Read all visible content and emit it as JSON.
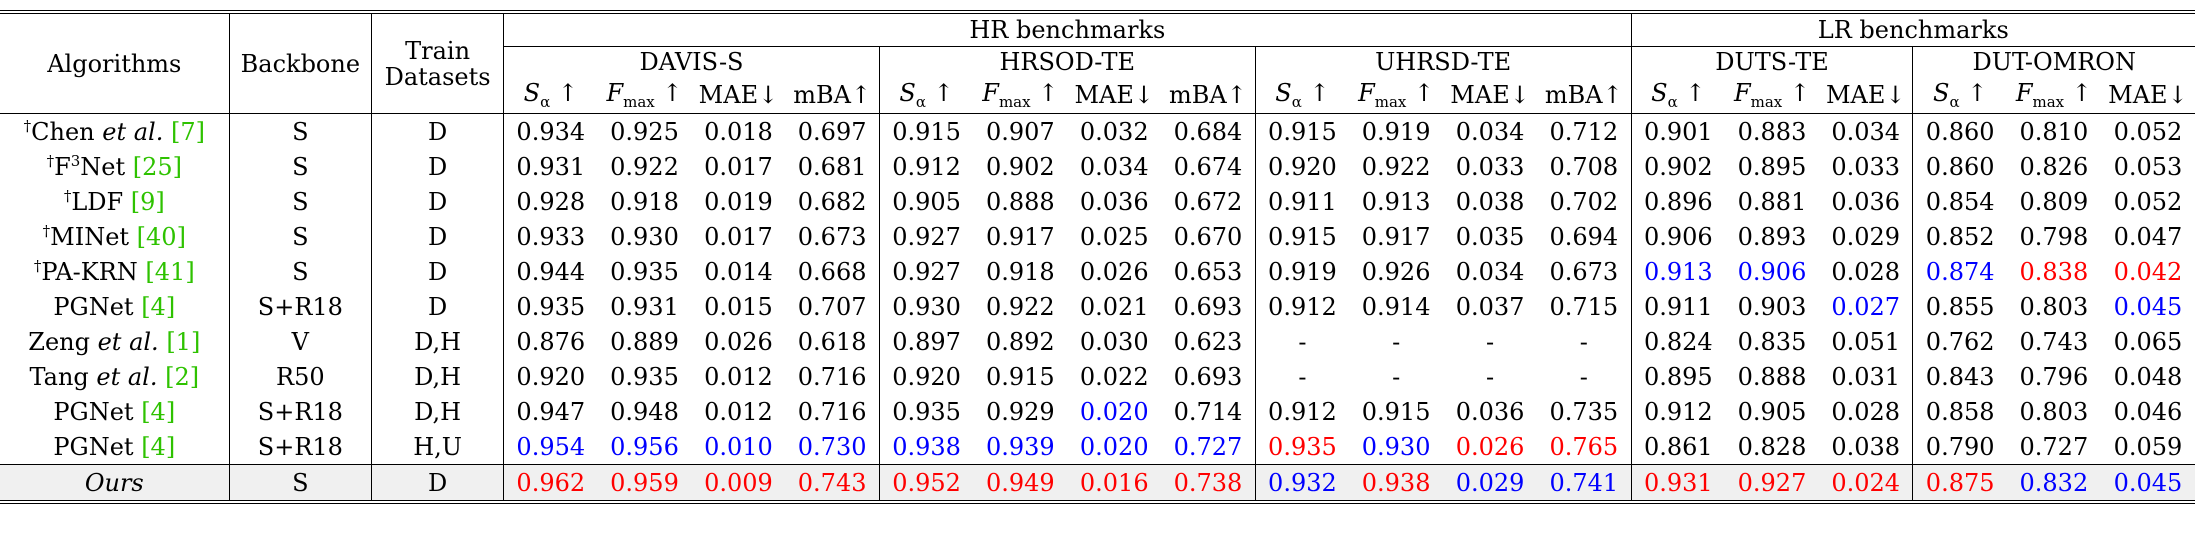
{
  "header": {
    "algorithms": "Algorithms",
    "backbone": "Backbone",
    "train_datasets": "Train Datasets",
    "hr_group": "HR benchmarks",
    "lr_group": "LR benchmarks",
    "datasets": [
      "DAVIS-S",
      "HRSOD-TE",
      "UHRSD-TE",
      "DUTS-TE",
      "DUT-OMRON"
    ],
    "metric_symbols": {
      "s_alpha": "S",
      "s_alpha_sub": "α",
      "f_max": "F",
      "f_max_sub": "max",
      "up_arrow": "↑",
      "mae": "MAE↓",
      "mba": "mBA↑"
    }
  },
  "rows": [
    {
      "dagger": "†",
      "name": "Chen ",
      "name_italic": "et al.",
      "ref": "[7]",
      "backbone": "S",
      "train": "D",
      "davis": [
        "0.934",
        "0.925",
        "0.018",
        "0.697"
      ],
      "hrsod": [
        "0.915",
        "0.907",
        "0.032",
        "0.684"
      ],
      "uhrsd": [
        "0.915",
        "0.919",
        "0.034",
        "0.712"
      ],
      "duts": [
        "0.901",
        "0.883",
        "0.034"
      ],
      "dutomron": [
        "0.860",
        "0.810",
        "0.052"
      ]
    },
    {
      "dagger": "†",
      "name": "F",
      "name_sup": "3",
      "name_rest": "Net ",
      "ref": "[25]",
      "backbone": "S",
      "train": "D",
      "davis": [
        "0.931",
        "0.922",
        "0.017",
        "0.681"
      ],
      "hrsod": [
        "0.912",
        "0.902",
        "0.034",
        "0.674"
      ],
      "uhrsd": [
        "0.920",
        "0.922",
        "0.033",
        "0.708"
      ],
      "duts": [
        "0.902",
        "0.895",
        "0.033"
      ],
      "dutomron": [
        "0.860",
        "0.826",
        "0.053"
      ]
    },
    {
      "dagger": "†",
      "name": "LDF ",
      "ref": "[9]",
      "backbone": "S",
      "train": "D",
      "davis": [
        "0.928",
        "0.918",
        "0.019",
        "0.682"
      ],
      "hrsod": [
        "0.905",
        "0.888",
        "0.036",
        "0.672"
      ],
      "uhrsd": [
        "0.911",
        "0.913",
        "0.038",
        "0.702"
      ],
      "duts": [
        "0.896",
        "0.881",
        "0.036"
      ],
      "dutomron": [
        "0.854",
        "0.809",
        "0.052"
      ]
    },
    {
      "dagger": "†",
      "name": "MINet ",
      "ref": "[40]",
      "backbone": "S",
      "train": "D",
      "davis": [
        "0.933",
        "0.930",
        "0.017",
        "0.673"
      ],
      "hrsod": [
        "0.927",
        "0.917",
        "0.025",
        "0.670"
      ],
      "uhrsd": [
        "0.915",
        "0.917",
        "0.035",
        "0.694"
      ],
      "duts": [
        "0.906",
        "0.893",
        "0.029"
      ],
      "dutomron": [
        "0.852",
        "0.798",
        "0.047"
      ]
    },
    {
      "dagger": "†",
      "name": "PA-KRN ",
      "ref": "[41]",
      "backbone": "S",
      "train": "D",
      "davis": [
        "0.944",
        "0.935",
        "0.014",
        "0.668"
      ],
      "hrsod": [
        "0.927",
        "0.918",
        "0.026",
        "0.653"
      ],
      "uhrsd": [
        "0.919",
        "0.926",
        "0.034",
        "0.673"
      ],
      "duts": [
        "0.913",
        "0.906",
        "0.028"
      ],
      "dutomron": [
        "0.874",
        "0.838",
        "0.042"
      ]
    },
    {
      "dagger": "",
      "name": "PGNet ",
      "ref": "[4]",
      "backbone": "S+R18",
      "train": "D",
      "davis": [
        "0.935",
        "0.931",
        "0.015",
        "0.707"
      ],
      "hrsod": [
        "0.930",
        "0.922",
        "0.021",
        "0.693"
      ],
      "uhrsd": [
        "0.912",
        "0.914",
        "0.037",
        "0.715"
      ],
      "duts": [
        "0.911",
        "0.903",
        "0.027"
      ],
      "dutomron": [
        "0.855",
        "0.803",
        "0.045"
      ]
    },
    {
      "dagger": "",
      "name": "Zeng ",
      "name_italic": "et al.",
      "ref": "[1]",
      "backbone": "V",
      "train": "D,H",
      "davis": [
        "0.876",
        "0.889",
        "0.026",
        "0.618"
      ],
      "hrsod": [
        "0.897",
        "0.892",
        "0.030",
        "0.623"
      ],
      "uhrsd": [
        "-",
        "-",
        "-",
        "-"
      ],
      "duts": [
        "0.824",
        "0.835",
        "0.051"
      ],
      "dutomron": [
        "0.762",
        "0.743",
        "0.065"
      ]
    },
    {
      "dagger": "",
      "name": "Tang ",
      "name_italic": "et al.",
      "ref": "[2]",
      "backbone": "R50",
      "train": "D,H",
      "davis": [
        "0.920",
        "0.935",
        "0.012",
        "0.716"
      ],
      "hrsod": [
        "0.920",
        "0.915",
        "0.022",
        "0.693"
      ],
      "uhrsd": [
        "-",
        "-",
        "-",
        "-"
      ],
      "duts": [
        "0.895",
        "0.888",
        "0.031"
      ],
      "dutomron": [
        "0.843",
        "0.796",
        "0.048"
      ]
    },
    {
      "dagger": "",
      "name": "PGNet ",
      "ref": "[4]",
      "backbone": "S+R18",
      "train": "D,H",
      "davis": [
        "0.947",
        "0.948",
        "0.012",
        "0.716"
      ],
      "hrsod": [
        "0.935",
        "0.929",
        "0.020",
        "0.714"
      ],
      "uhrsd": [
        "0.912",
        "0.915",
        "0.036",
        "0.735"
      ],
      "duts": [
        "0.912",
        "0.905",
        "0.028"
      ],
      "dutomron": [
        "0.858",
        "0.803",
        "0.046"
      ]
    },
    {
      "dagger": "",
      "name": "PGNet ",
      "ref": "[4]",
      "backbone": "S+R18",
      "train": "H,U",
      "davis": [
        "0.954",
        "0.956",
        "0.010",
        "0.730"
      ],
      "hrsod": [
        "0.938",
        "0.939",
        "0.020",
        "0.727"
      ],
      "uhrsd": [
        "0.935",
        "0.930",
        "0.026",
        "0.765"
      ],
      "duts": [
        "0.861",
        "0.828",
        "0.038"
      ],
      "dutomron": [
        "0.790",
        "0.727",
        "0.059"
      ]
    },
    {
      "dagger": "",
      "name": "Ours",
      "ref": "",
      "backbone": "S",
      "train": "D",
      "davis": [
        "0.962",
        "0.959",
        "0.009",
        "0.743"
      ],
      "hrsod": [
        "0.952",
        "0.949",
        "0.016",
        "0.738"
      ],
      "uhrsd": [
        "0.932",
        "0.938",
        "0.029",
        "0.741"
      ],
      "duts": [
        "0.931",
        "0.927",
        "0.024"
      ],
      "dutomron": [
        "0.875",
        "0.832",
        "0.045"
      ]
    }
  ],
  "highlight_colors": {
    "first": "#ff0000",
    "second": "#0000ff",
    "ref_link": "#2ec200"
  },
  "highlights": {
    "0": {},
    "1": {},
    "2": {},
    "3": {},
    "4": {
      "duts": [
        "blue",
        "blue",
        ""
      ],
      "dutomron": [
        "blue",
        "red",
        "red"
      ]
    },
    "5": {
      "duts": [
        "",
        "",
        "blue"
      ],
      "dutomron": [
        "",
        "",
        "blue"
      ]
    },
    "6": {},
    "7": {},
    "8": {
      "hrsod": [
        "",
        "",
        "blue",
        ""
      ]
    },
    "9": {
      "davis": [
        "blue",
        "blue",
        "blue",
        "blue"
      ],
      "hrsod": [
        "blue",
        "blue",
        "blue",
        "blue"
      ],
      "uhrsd": [
        "red",
        "blue",
        "red",
        "red"
      ]
    },
    "10": {
      "davis": [
        "red",
        "red",
        "red",
        "red"
      ],
      "hrsod": [
        "red",
        "red",
        "red",
        "red"
      ],
      "uhrsd": [
        "blue",
        "red",
        "blue",
        "blue"
      ],
      "duts": [
        "red",
        "red",
        "red"
      ],
      "dutomron": [
        "red",
        "blue",
        "blue"
      ]
    }
  }
}
